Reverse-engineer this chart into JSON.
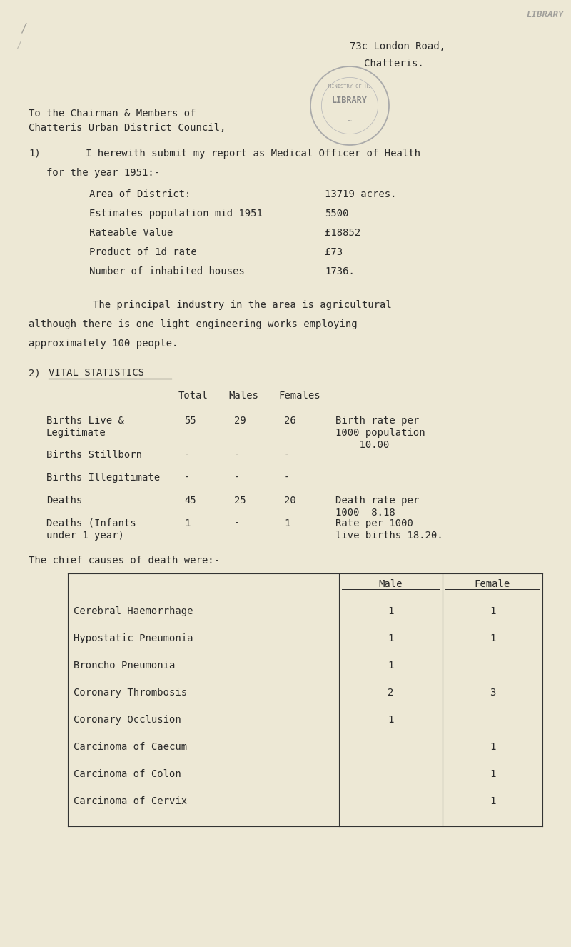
{
  "bg_color": "#ede8d5",
  "text_color": "#2a2a2a",
  "address_line1": "73c London Road,",
  "address_line2": "Chatteris.",
  "salutation_line1": "To the Chairman & Members of",
  "salutation_line2": "Chatteris Urban District Council,",
  "section1_intro_a": "1)",
  "section1_intro_b": "I herewith submit my report as Medical Officer of Health",
  "section1_year": "for the year 1951:-",
  "district_facts": [
    [
      "Area of District:",
      "13719 acres."
    ],
    [
      "Estimates population mid 1951",
      "5500"
    ],
    [
      "Rateable Value",
      "£18852"
    ],
    [
      "Product of 1d rate",
      "£73"
    ],
    [
      "Number of inhabited houses",
      "1736."
    ]
  ],
  "industry_text_line1": "The principal industry in the area is agricultural",
  "industry_text_line2": "although there is one light engineering works employing",
  "industry_text_line3": "approximately 100 people.",
  "section2_label": "2)",
  "section2_title": "VITAL STATISTICS",
  "stats_cols": [
    "Total",
    "Males",
    "Females"
  ],
  "vital_stats": [
    {
      "label": [
        "Births Live &",
        "Legitimate"
      ],
      "total": "55",
      "males": "29",
      "females": "26",
      "note": [
        "Birth rate per",
        "1000 population",
        "    10.00"
      ]
    },
    {
      "label": [
        "Births Stillborn"
      ],
      "total": "-",
      "males": "-",
      "females": "-",
      "note": []
    },
    {
      "label": [
        "Births Illegitimate"
      ],
      "total": "-",
      "males": "-",
      "females": "-",
      "note": []
    },
    {
      "label": [
        "Deaths"
      ],
      "total": "45",
      "males": "25",
      "females": "20",
      "note": [
        "Death rate per",
        "1000  8.18"
      ]
    },
    {
      "label": [
        "Deaths (Infants",
        "under 1 year)"
      ],
      "total": "1",
      "males": "-",
      "females": "1",
      "note": [
        "Rate per 1000",
        "live births 18.20."
      ]
    }
  ],
  "causes_intro": "The chief causes of death were:-",
  "causes": [
    [
      "Cerebral Haemorrhage",
      "1",
      "1"
    ],
    [
      "Hypostatic Pneumonia",
      "1",
      "1"
    ],
    [
      "Broncho Pneumonia",
      "1",
      ""
    ],
    [
      "Coronary Thrombosis",
      "2",
      "3"
    ],
    [
      "Coronary Occlusion",
      "1",
      ""
    ],
    [
      "Carcinoma of Caecum",
      "",
      "1"
    ],
    [
      "Carcinoma of Colon",
      "",
      "1"
    ],
    [
      "Carcinoma of Cervix",
      "",
      "1"
    ]
  ],
  "font_size": 10.0,
  "font_size_sm": 8.5
}
